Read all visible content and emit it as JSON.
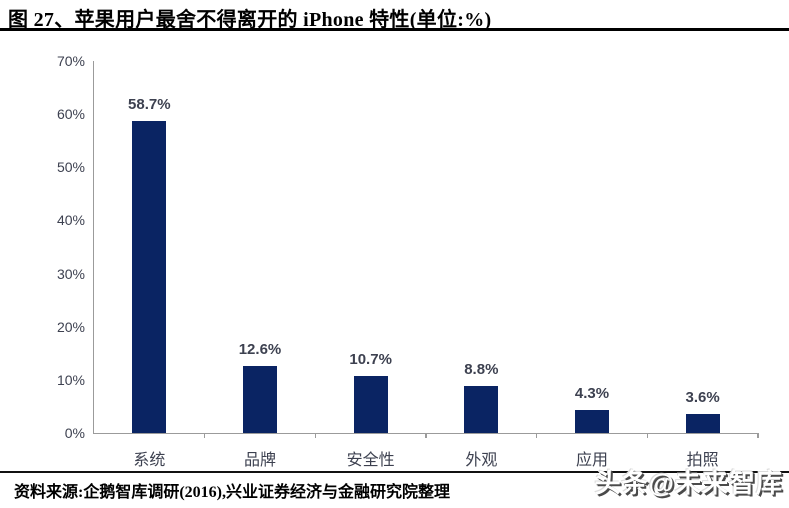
{
  "title": "图 27、苹果用户最舍不得离开的 iPhone 特性(单位:%)",
  "source": "资料来源:企鹅智库调研(2016),兴业证券经济与金融研究院整理",
  "watermark": "头条@未来智库",
  "colors": {
    "bar": "#0a2463",
    "axis": "#9b9b9b",
    "label": "#3d4150",
    "rule": "#111111"
  },
  "chart_data": {
    "type": "bar",
    "title": "苹果用户最舍不得离开的 iPhone 特性",
    "unit": "%",
    "categories": [
      "系统",
      "品牌",
      "安全性",
      "外观",
      "应用",
      "拍照"
    ],
    "values": [
      58.7,
      12.6,
      10.7,
      8.8,
      4.3,
      3.6
    ],
    "value_labels": [
      "58.7%",
      "12.6%",
      "10.7%",
      "8.8%",
      "4.3%",
      "3.6%"
    ],
    "xlabel": "",
    "ylabel": "",
    "ylim": [
      0,
      70
    ],
    "yticks": [
      "0%",
      "10%",
      "20%",
      "30%",
      "40%",
      "50%",
      "60%",
      "70%"
    ],
    "grid": false,
    "legend": null
  }
}
